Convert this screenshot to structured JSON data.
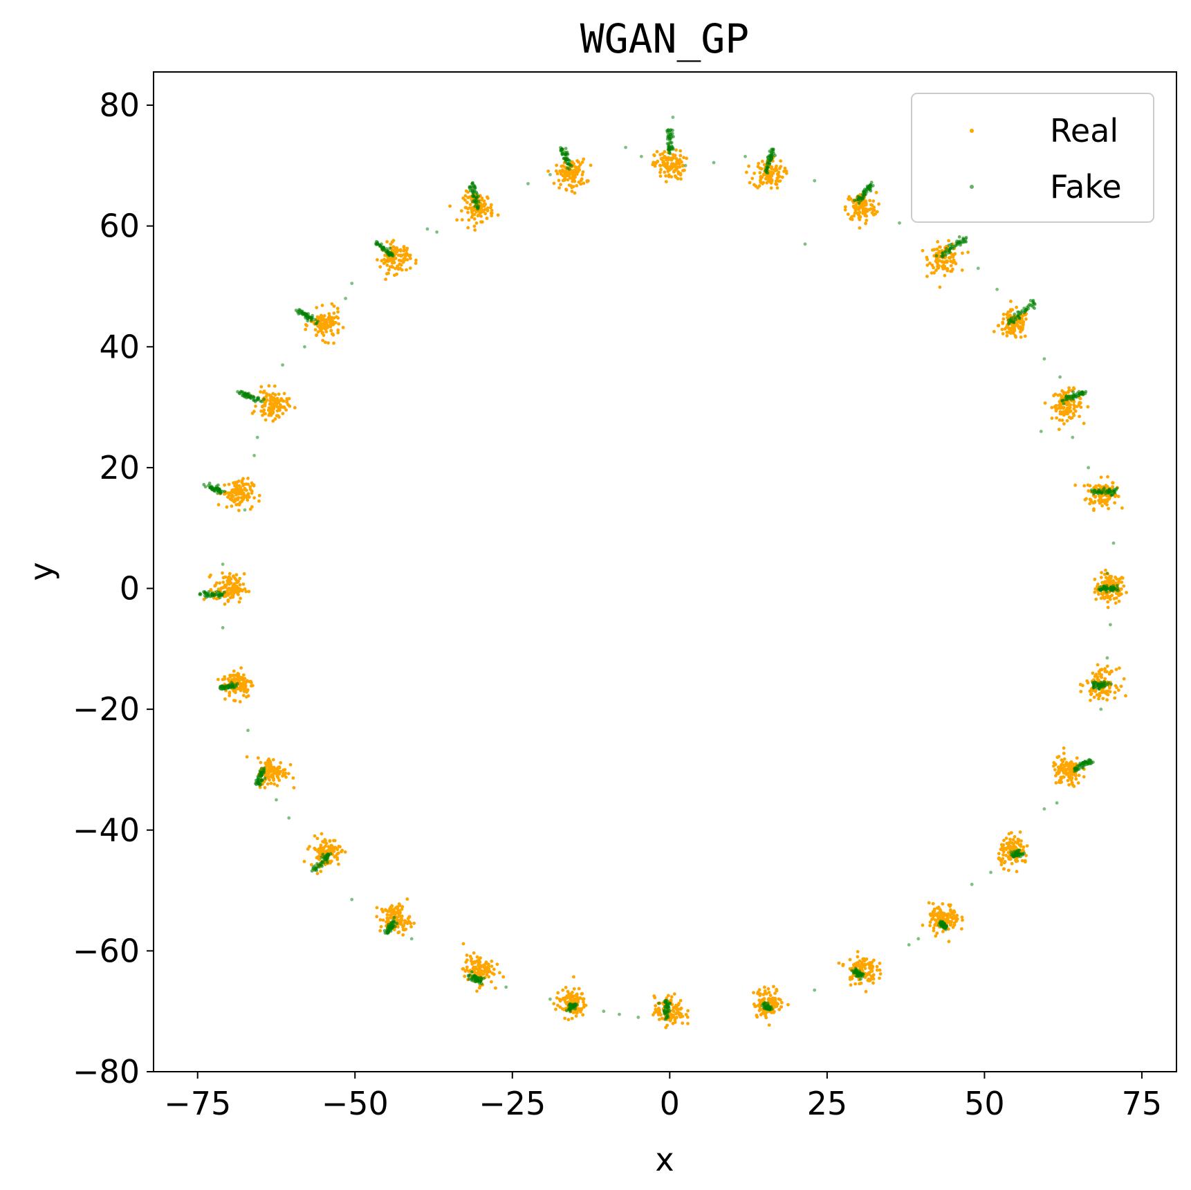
{
  "chart_data": {
    "type": "scatter",
    "title": "WGAN_GP",
    "xlabel": "x",
    "ylabel": "y",
    "xlim": [
      -82,
      80.5
    ],
    "ylim": [
      -80,
      85.5
    ],
    "xticks": [
      -75,
      -50,
      -25,
      0,
      25,
      50,
      75
    ],
    "yticks": [
      -80,
      -60,
      -40,
      -20,
      0,
      20,
      40,
      60,
      80
    ],
    "xtick_labels": [
      "−75",
      "−50",
      "−25",
      "0",
      "25",
      "50",
      "75"
    ],
    "ytick_labels": [
      "−80",
      "−60",
      "−40",
      "−20",
      "0",
      "20",
      "40",
      "60",
      "80"
    ],
    "grid": false,
    "legend_position": "top-right",
    "series": [
      {
        "name": "Real",
        "color": "#FFA500",
        "cluster_centers": [
          [
            70.0,
            0.0
          ],
          [
            68.6,
            15.7
          ],
          [
            63.1,
            30.4
          ],
          [
            54.7,
            43.6
          ],
          [
            43.6,
            54.7
          ],
          [
            30.4,
            63.1
          ],
          [
            15.7,
            68.6
          ],
          [
            0.0,
            70.0
          ],
          [
            -15.7,
            68.6
          ],
          [
            -30.4,
            63.1
          ],
          [
            -43.6,
            54.7
          ],
          [
            -54.7,
            43.6
          ],
          [
            -63.1,
            30.4
          ],
          [
            -68.6,
            15.7
          ],
          [
            -70.0,
            0.0
          ],
          [
            -68.6,
            -15.7
          ],
          [
            -63.1,
            -30.4
          ],
          [
            -54.7,
            -43.6
          ],
          [
            -43.6,
            -54.7
          ],
          [
            -30.4,
            -63.1
          ],
          [
            -15.7,
            -68.6
          ],
          [
            0.0,
            -70.0
          ],
          [
            15.7,
            -68.6
          ],
          [
            30.4,
            -63.1
          ],
          [
            43.6,
            -54.7
          ],
          [
            54.7,
            -43.6
          ],
          [
            63.1,
            -30.4
          ],
          [
            68.6,
            -15.7
          ]
        ],
        "cluster_spread": 1.2
      },
      {
        "name": "Fake",
        "color": "#008000",
        "segments": [
          [
            [
              0.0,
              72.0
            ],
            [
              0.0,
              76.0
            ]
          ],
          [
            [
              15.2,
              69.0
            ],
            [
              16.4,
              72.5
            ]
          ],
          [
            [
              30.0,
              64.0
            ],
            [
              32.0,
              67.0
            ]
          ],
          [
            [
              43.0,
              55.0
            ],
            [
              47.0,
              58.0
            ]
          ],
          [
            [
              54.0,
              44.0
            ],
            [
              58.0,
              47.5
            ]
          ],
          [
            [
              62.0,
              31.0
            ],
            [
              66.0,
              32.5
            ]
          ],
          [
            [
              67.0,
              16.0
            ],
            [
              71.0,
              16.0
            ]
          ],
          [
            [
              68.0,
              0.0
            ],
            [
              71.0,
              0.0
            ]
          ],
          [
            [
              67.0,
              -16.0
            ],
            [
              70.0,
              -16.0
            ]
          ],
          [
            [
              64.0,
              -30.0
            ],
            [
              67.0,
              -28.5
            ]
          ],
          [
            [
              54.5,
              -44.0
            ],
            [
              56.0,
              -44.0
            ]
          ],
          [
            [
              43.0,
              -55.5
            ],
            [
              44.0,
              -56.0
            ]
          ],
          [
            [
              29.5,
              -63.5
            ],
            [
              30.5,
              -64.0
            ]
          ],
          [
            [
              15.0,
              -69.0
            ],
            [
              16.0,
              -69.5
            ]
          ],
          [
            [
              -0.5,
              -68.0
            ],
            [
              -0.5,
              -71.0
            ]
          ],
          [
            [
              -15.0,
              -69.0
            ],
            [
              -16.0,
              -69.5
            ]
          ],
          [
            [
              -30.0,
              -65.0
            ],
            [
              -32.0,
              -64.0
            ]
          ],
          [
            [
              -43.5,
              -55.0
            ],
            [
              -45.0,
              -57.0
            ]
          ],
          [
            [
              -54.0,
              -44.0
            ],
            [
              -57.0,
              -47.0
            ]
          ],
          [
            [
              -64.5,
              -30.0
            ],
            [
              -65.5,
              -32.5
            ]
          ],
          [
            [
              -69.0,
              -16.0
            ],
            [
              -71.5,
              -16.5
            ]
          ],
          [
            [
              -71.0,
              -1.0
            ],
            [
              -74.5,
              -1.0
            ]
          ],
          [
            [
              -71.0,
              16.0
            ],
            [
              -73.5,
              17.0
            ]
          ],
          [
            [
              -65.0,
              31.0
            ],
            [
              -68.5,
              32.5
            ]
          ],
          [
            [
              -56.0,
              44.0
            ],
            [
              -59.0,
              46.0
            ]
          ],
          [
            [
              -44.0,
              55.0
            ],
            [
              -47.0,
              57.5
            ]
          ],
          [
            [
              -30.5,
              63.0
            ],
            [
              -31.5,
              67.0
            ]
          ],
          [
            [
              -16.0,
              69.5
            ],
            [
              -17.0,
              73.0
            ]
          ]
        ],
        "bridge_points": [
          [
            -7.0,
            73.0
          ],
          [
            -4.5,
            71.5
          ],
          [
            2.5,
            70.0
          ],
          [
            7.0,
            70.5
          ],
          [
            12.0,
            71.5
          ],
          [
            23.0,
            67.5
          ],
          [
            36.5,
            60.5
          ],
          [
            21.5,
            57.0
          ],
          [
            49.0,
            53.0
          ],
          [
            52.0,
            49.5
          ],
          [
            59.5,
            38.0
          ],
          [
            62.0,
            35.0
          ],
          [
            59.0,
            26.0
          ],
          [
            64.0,
            25.0
          ],
          [
            66.5,
            20.0
          ],
          [
            70.5,
            7.5
          ],
          [
            69.5,
            2.5
          ],
          [
            70.0,
            -6.0
          ],
          [
            69.5,
            -11.5
          ],
          [
            68.5,
            -20.0
          ],
          [
            61.5,
            -35.5
          ],
          [
            59.5,
            -36.5
          ],
          [
            51.0,
            -47.0
          ],
          [
            48.0,
            -49.0
          ],
          [
            39.5,
            -58.0
          ],
          [
            38.0,
            -59.0
          ],
          [
            23.0,
            -66.5
          ],
          [
            -5.0,
            -71.0
          ],
          [
            -8.0,
            -70.5
          ],
          [
            -10.5,
            -70.0
          ],
          [
            -19.0,
            -68.0
          ],
          [
            -26.0,
            -66.0
          ],
          [
            -41.0,
            -58.0
          ],
          [
            -50.5,
            -51.5
          ],
          [
            -60.5,
            -38.0
          ],
          [
            -62.5,
            -35.0
          ],
          [
            -67.0,
            -23.5
          ],
          [
            -71.0,
            -6.5
          ],
          [
            -71.0,
            4.0
          ],
          [
            -67.5,
            13.0
          ],
          [
            -66.0,
            22.0
          ],
          [
            -65.5,
            25.0
          ],
          [
            -61.5,
            37.0
          ],
          [
            -58.0,
            40.0
          ],
          [
            -51.5,
            48.0
          ],
          [
            -50.5,
            50.5
          ],
          [
            -38.5,
            59.5
          ],
          [
            -37.0,
            59.0
          ],
          [
            -22.5,
            67.0
          ],
          [
            -19.0,
            68.5
          ],
          [
            0.5,
            78.0
          ]
        ]
      }
    ]
  }
}
